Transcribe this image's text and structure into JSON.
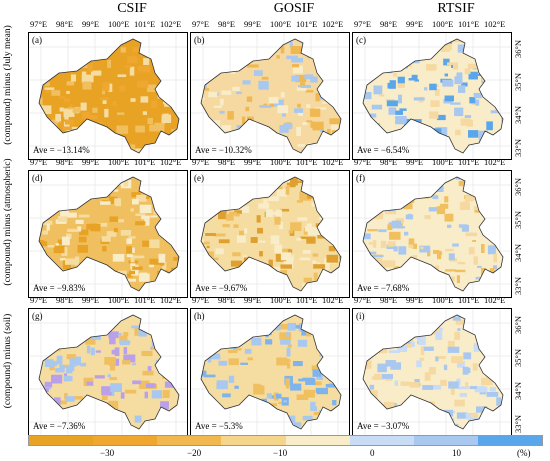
{
  "columns": [
    "CSIF",
    "GOSIF",
    "RTSIF"
  ],
  "rows": [
    "(compound) minus (July mean)",
    "(compound) minus (atmospheric)",
    "(compound) minus (soil)"
  ],
  "lon_ticks": [
    "97°E",
    "98°E",
    "99°E",
    "100°E",
    "101°E",
    "102°E"
  ],
  "lat_ticks": [
    "36°N",
    "35°N",
    "34°N",
    "33°N"
  ],
  "panels": [
    {
      "label": "(a)",
      "ave": "Ave = −13.14%",
      "palette": [
        "#e8a224",
        "#f0c060",
        "#f5dca0",
        "#efa730"
      ]
    },
    {
      "label": "(b)",
      "ave": "Ave = −10.32%",
      "palette": [
        "#f5d9a0",
        "#efb850",
        "#f9ecc8",
        "#a9c8f0"
      ]
    },
    {
      "label": "(c)",
      "ave": "Ave = −6.54%",
      "palette": [
        "#f9ecc8",
        "#f5d9a0",
        "#a9c8f0",
        "#5aa6ea"
      ]
    },
    {
      "label": "(d)",
      "ave": "Ave = −9.83%",
      "palette": [
        "#f0c060",
        "#f5dca0",
        "#f9ecc8",
        "#e8a224"
      ]
    },
    {
      "label": "(e)",
      "ave": "Ave = −9.67%",
      "palette": [
        "#f5dca0",
        "#f0c060",
        "#f9ecc8",
        "#e0a030"
      ]
    },
    {
      "label": "(f)",
      "ave": "Ave = −7.68%",
      "palette": [
        "#f9ecc8",
        "#f5d9a0",
        "#f0c060",
        "#a9c8f0"
      ]
    },
    {
      "label": "(g)",
      "ave": "Ave = −7.36%",
      "palette": [
        "#f5dca0",
        "#f0c060",
        "#a9c8f0",
        "#b9a0e8"
      ]
    },
    {
      "label": "(h)",
      "ave": "Ave = −5.3%",
      "palette": [
        "#f5dca0",
        "#7eb3ec",
        "#a9c8f0",
        "#f0c060"
      ]
    },
    {
      "label": "(i)",
      "ave": "Ave = −3.07%",
      "palette": [
        "#f9ecc8",
        "#a9c8f0",
        "#c8dcf5",
        "#f5d9a0"
      ]
    }
  ],
  "colorbar": {
    "colors": [
      "#e8a224",
      "#efa730",
      "#f2b850",
      "#f5d48c",
      "#f9ecc8",
      "#c8dcf5",
      "#a9c8f0",
      "#5aa6ea"
    ],
    "tick_labels": [
      "−30",
      "−20",
      "−10",
      "0",
      "10"
    ],
    "unit": "(%)"
  }
}
